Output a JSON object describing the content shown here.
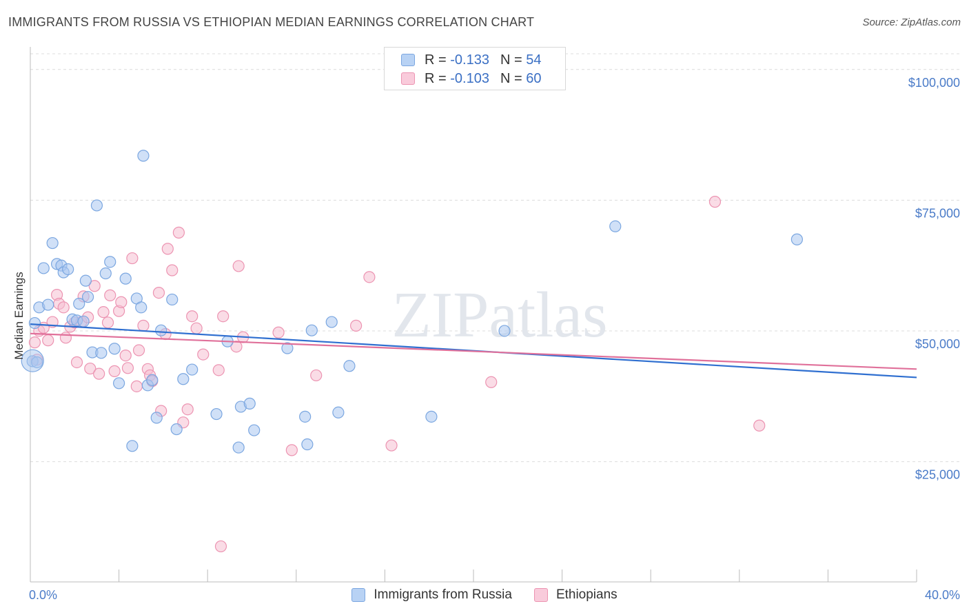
{
  "title": "IMMIGRANTS FROM RUSSIA VS ETHIOPIAN MEDIAN EARNINGS CORRELATION CHART",
  "source": "Source: ZipAtlas.com",
  "watermark": "ZIPatlas",
  "legend": {
    "rows": [
      {
        "r_label": "R =",
        "r_value": "-0.133",
        "n_label": "N =",
        "n_value": "54"
      },
      {
        "r_label": "R =",
        "r_value": "-0.103",
        "n_label": "N =",
        "n_value": "60"
      }
    ]
  },
  "chart_data": {
    "type": "scatter",
    "title": "IMMIGRANTS FROM RUSSIA VS ETHIOPIAN MEDIAN EARNINGS CORRELATION CHART",
    "xlabel": "",
    "ylabel": "Median Earnings",
    "xlim": [
      0,
      40
    ],
    "ylim": [
      2000,
      103000
    ],
    "x_tick_labels": [
      "0.0%",
      "40.0%"
    ],
    "y_ticks": [
      25000,
      50000,
      75000,
      100000
    ],
    "y_tick_labels": [
      "$25,000",
      "$50,000",
      "$75,000",
      "$100,000"
    ],
    "grid": true,
    "legend_position": "top-center",
    "series": [
      {
        "name": "Immigrants from Russia",
        "color": "#a9c7f0",
        "edge": "#7aa6e0",
        "line_color": "#2f6fd0",
        "r": -0.133,
        "n": 54,
        "trend": [
          [
            0,
            51300
          ],
          [
            40,
            41100
          ]
        ],
        "points": [
          [
            0.2,
            51500
          ],
          [
            0.4,
            54500
          ],
          [
            0.6,
            62000
          ],
          [
            0.8,
            55000
          ],
          [
            1.0,
            66800
          ],
          [
            1.2,
            62800
          ],
          [
            1.4,
            62500
          ],
          [
            1.5,
            61200
          ],
          [
            1.7,
            61800
          ],
          [
            1.9,
            52200
          ],
          [
            2.1,
            52000
          ],
          [
            2.2,
            55200
          ],
          [
            2.4,
            51800
          ],
          [
            2.5,
            59600
          ],
          [
            2.6,
            56500
          ],
          [
            2.8,
            45900
          ],
          [
            3.0,
            74000
          ],
          [
            3.2,
            45800
          ],
          [
            3.4,
            61000
          ],
          [
            3.6,
            63200
          ],
          [
            3.8,
            46600
          ],
          [
            4.0,
            40000
          ],
          [
            4.3,
            60000
          ],
          [
            4.6,
            28000
          ],
          [
            4.8,
            56200
          ],
          [
            5.0,
            54500
          ],
          [
            5.1,
            83500
          ],
          [
            5.3,
            39600
          ],
          [
            5.5,
            40600
          ],
          [
            5.7,
            33400
          ],
          [
            5.9,
            50100
          ],
          [
            6.4,
            56000
          ],
          [
            6.6,
            31200
          ],
          [
            6.9,
            40800
          ],
          [
            7.3,
            42600
          ],
          [
            8.4,
            34100
          ],
          [
            8.9,
            48000
          ],
          [
            9.4,
            27700
          ],
          [
            9.5,
            35500
          ],
          [
            9.9,
            36100
          ],
          [
            10.1,
            31000
          ],
          [
            11.6,
            46700
          ],
          [
            12.4,
            33600
          ],
          [
            12.5,
            28300
          ],
          [
            12.7,
            50100
          ],
          [
            13.6,
            51700
          ],
          [
            13.9,
            34400
          ],
          [
            14.4,
            43300
          ],
          [
            18.1,
            33600
          ],
          [
            21.4,
            50000
          ],
          [
            26.4,
            70000
          ],
          [
            34.6,
            67500
          ],
          [
            0.1,
            44200
          ],
          [
            0.3,
            44000
          ]
        ]
      },
      {
        "name": "Ethiopians",
        "color": "#f6bfd1",
        "edge": "#ec93b1",
        "line_color": "#e0709a",
        "r": -0.103,
        "n": 60,
        "trend": [
          [
            0,
            49500
          ],
          [
            40,
            42700
          ]
        ],
        "points": [
          [
            0.2,
            47800
          ],
          [
            0.4,
            50000
          ],
          [
            0.6,
            50600
          ],
          [
            0.8,
            48200
          ],
          [
            1.0,
            51700
          ],
          [
            1.2,
            56900
          ],
          [
            1.3,
            55200
          ],
          [
            1.5,
            54500
          ],
          [
            1.6,
            48700
          ],
          [
            1.8,
            50800
          ],
          [
            2.0,
            51600
          ],
          [
            2.1,
            44000
          ],
          [
            2.3,
            51700
          ],
          [
            2.4,
            56600
          ],
          [
            2.6,
            52600
          ],
          [
            2.7,
            42800
          ],
          [
            2.9,
            58600
          ],
          [
            3.1,
            41800
          ],
          [
            3.3,
            53600
          ],
          [
            3.5,
            51600
          ],
          [
            3.6,
            56800
          ],
          [
            3.8,
            42300
          ],
          [
            4.0,
            53800
          ],
          [
            4.1,
            55500
          ],
          [
            4.3,
            45300
          ],
          [
            4.4,
            42900
          ],
          [
            4.6,
            63900
          ],
          [
            4.8,
            39400
          ],
          [
            4.9,
            46300
          ],
          [
            5.1,
            51000
          ],
          [
            5.3,
            42700
          ],
          [
            5.4,
            41500
          ],
          [
            5.5,
            40400
          ],
          [
            5.8,
            57300
          ],
          [
            5.9,
            34700
          ],
          [
            6.1,
            49400
          ],
          [
            6.2,
            65700
          ],
          [
            6.4,
            61600
          ],
          [
            6.7,
            68800
          ],
          [
            6.9,
            32500
          ],
          [
            7.1,
            35000
          ],
          [
            7.3,
            52800
          ],
          [
            7.5,
            50500
          ],
          [
            7.8,
            45500
          ],
          [
            8.5,
            42500
          ],
          [
            8.6,
            8800
          ],
          [
            8.7,
            52800
          ],
          [
            9.3,
            47000
          ],
          [
            9.4,
            62400
          ],
          [
            9.6,
            48800
          ],
          [
            11.2,
            49700
          ],
          [
            11.8,
            27200
          ],
          [
            12.9,
            41500
          ],
          [
            14.7,
            51000
          ],
          [
            15.3,
            60300
          ],
          [
            16.3,
            28100
          ],
          [
            20.8,
            40200
          ],
          [
            30.9,
            74700
          ],
          [
            32.9,
            31900
          ],
          [
            0.3,
            44500
          ]
        ]
      }
    ]
  },
  "bottom_legend": {
    "items": [
      "Immigrants from Russia",
      "Ethiopians"
    ]
  }
}
